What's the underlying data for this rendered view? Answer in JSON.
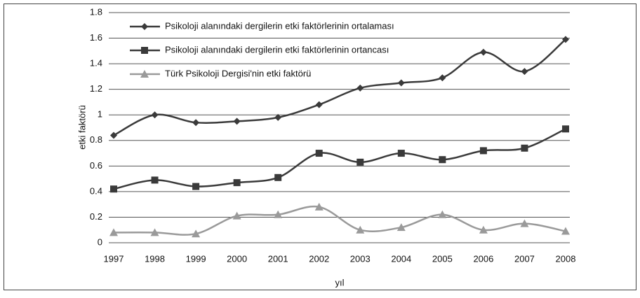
{
  "chart_data": {
    "type": "line",
    "x_label": "yıl",
    "y_label": "etki faktörü",
    "categories": [
      "1997",
      "1998",
      "1999",
      "2000",
      "2001",
      "2002",
      "2003",
      "2004",
      "2005",
      "2006",
      "2007",
      "2008"
    ],
    "series": [
      {
        "name": "Psikoloji alanındaki dergilerin etki faktörlerinin ortalaması",
        "color": "#3a3a3a",
        "marker": "diamond",
        "values": [
          0.84,
          1.0,
          0.94,
          0.95,
          0.98,
          1.08,
          1.21,
          1.25,
          1.29,
          1.49,
          1.34,
          1.59
        ]
      },
      {
        "name": "Psikoloji alanındaki dergilerin etki faktörlerinin ortancası",
        "color": "#3a3a3a",
        "marker": "square",
        "values": [
          0.42,
          0.49,
          0.44,
          0.47,
          0.51,
          0.7,
          0.63,
          0.7,
          0.65,
          0.72,
          0.74,
          0.89
        ]
      },
      {
        "name": "Türk Psikoloji Dergisi'nin etki faktörü",
        "color": "#9a9a9a",
        "marker": "triangle",
        "values": [
          0.08,
          0.08,
          0.07,
          0.21,
          0.22,
          0.28,
          0.1,
          0.12,
          0.22,
          0.1,
          0.15,
          0.09
        ]
      }
    ],
    "ylim": [
      0,
      1.8
    ],
    "yticks": [
      0,
      0.2,
      0.4,
      0.6,
      0.8,
      1,
      1.2,
      1.4,
      1.6,
      1.8
    ],
    "grid": true,
    "legend": "upper left"
  }
}
